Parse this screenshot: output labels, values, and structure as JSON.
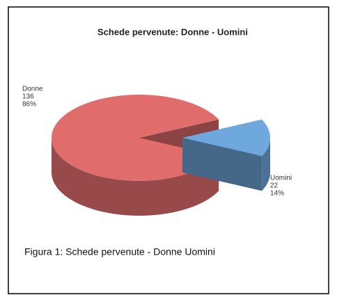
{
  "chart_data": {
    "type": "pie3d",
    "title": "Schede pervenute: Donne - Uomini",
    "categories": [
      "Donne",
      "Uomini"
    ],
    "values": [
      136,
      22
    ],
    "percent_labels": [
      "86%",
      "14%"
    ],
    "colors": [
      "#e06c6c",
      "#6fa8dc"
    ],
    "caption": "Figura 1: Schede pervenute - Donne Uomini"
  }
}
